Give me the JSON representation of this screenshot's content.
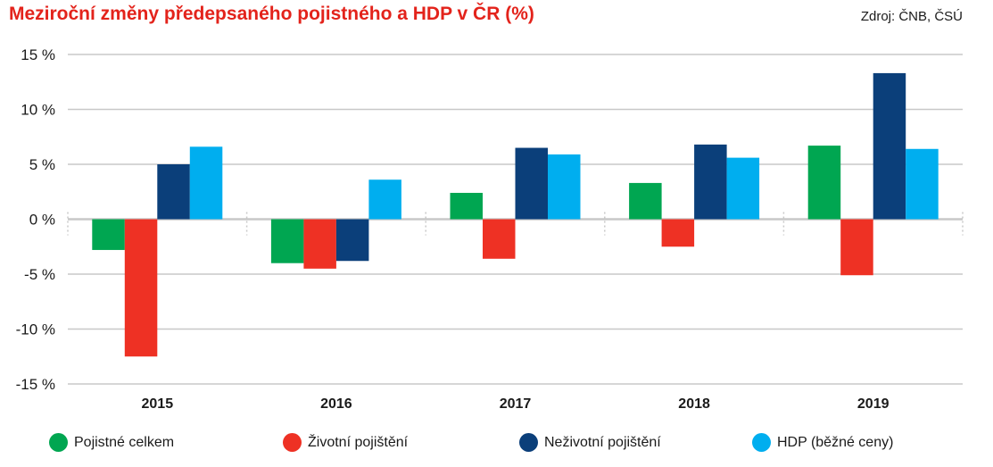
{
  "header": {
    "title": "Meziroční změny předepsaného pojistného a HDP v ČR (%)",
    "source": "Zdroj: ČNB, ČSÚ"
  },
  "colors": {
    "title": "#e3231b",
    "series": [
      "#00a651",
      "#ee3124",
      "#0b3f7a",
      "#00aeef"
    ],
    "grid": "#c8c8c8"
  },
  "chart_data": {
    "type": "bar",
    "title": "Meziroční změny předepsaného pojistného a HDP v ČR (%)",
    "categories": [
      "2015",
      "2016",
      "2017",
      "2018",
      "2019"
    ],
    "series": [
      {
        "name": "Pojistné celkem",
        "values": [
          -2.8,
          -4.0,
          2.4,
          3.3,
          6.7
        ]
      },
      {
        "name": "Životní pojištění",
        "values": [
          -12.5,
          -4.5,
          -3.6,
          -2.5,
          -5.1
        ]
      },
      {
        "name": "Neživotní pojištění",
        "values": [
          5.0,
          -3.8,
          6.5,
          6.8,
          13.3
        ]
      },
      {
        "name": "HDP (běžné ceny)",
        "values": [
          6.6,
          3.6,
          5.9,
          5.6,
          6.4
        ]
      }
    ],
    "ylim": [
      -15,
      15
    ],
    "yticks": [
      15,
      10,
      5,
      0,
      -5,
      -10,
      -15
    ],
    "ytick_labels": [
      "15 %",
      "10 %",
      "5 %",
      "0 %",
      "-5 %",
      "-10 %",
      "-15 %"
    ],
    "grid": true,
    "legend_position": "bottom"
  }
}
